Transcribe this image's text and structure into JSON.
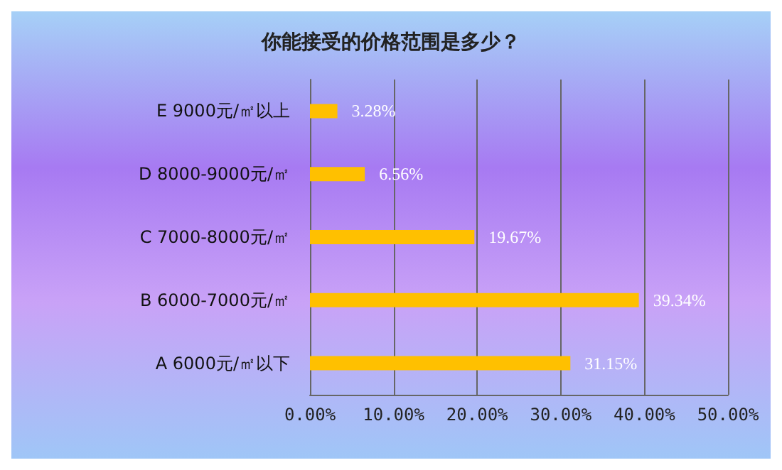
{
  "chart_data": {
    "type": "bar",
    "orientation": "horizontal",
    "title": "你能接受的价格范围是多少？",
    "categories": [
      "E 9000元/㎡以上",
      "D 8000-9000元/㎡",
      "C 7000-8000元/㎡",
      "B 6000-7000元/㎡",
      "A 6000元/㎡以下"
    ],
    "values": [
      3.28,
      6.56,
      19.67,
      39.34,
      31.15
    ],
    "value_labels": [
      "3.28%",
      "6.56%",
      "19.67%",
      "39.34%",
      "31.15%"
    ],
    "color": "#ffc000",
    "xlim": [
      0,
      50
    ],
    "xticks": [
      {
        "value": 0,
        "label": "0.00%"
      },
      {
        "value": 10,
        "label": "10.00%"
      },
      {
        "value": 20,
        "label": "20.00%"
      },
      {
        "value": 30,
        "label": "30.00%"
      },
      {
        "value": 40,
        "label": "40.00%"
      },
      {
        "value": 50,
        "label": "50.00%"
      }
    ],
    "grid": "x"
  }
}
